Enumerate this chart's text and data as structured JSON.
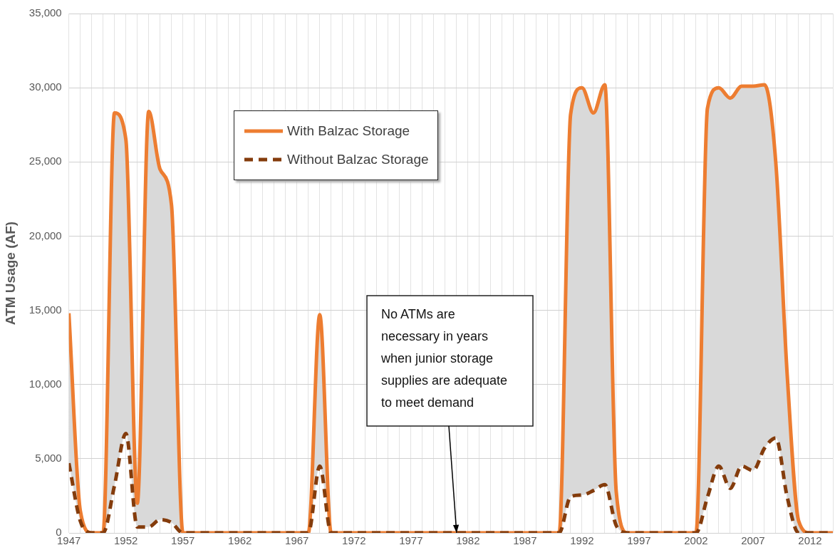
{
  "chart_data": {
    "type": "line",
    "ylabel": "ATM Usage (AF)",
    "x": [
      1947,
      1948,
      1949,
      1950,
      1951,
      1952,
      1953,
      1954,
      1955,
      1956,
      1957,
      1958,
      1959,
      1960,
      1961,
      1962,
      1963,
      1964,
      1965,
      1966,
      1967,
      1968,
      1969,
      1970,
      1971,
      1972,
      1973,
      1974,
      1975,
      1976,
      1977,
      1978,
      1979,
      1980,
      1981,
      1982,
      1983,
      1984,
      1985,
      1986,
      1987,
      1988,
      1989,
      1990,
      1991,
      1992,
      1993,
      1994,
      1995,
      1996,
      1997,
      1998,
      1999,
      2000,
      2001,
      2002,
      2003,
      2004,
      2005,
      2006,
      2007,
      2008,
      2009,
      2010,
      2011,
      2012,
      2013,
      2014
    ],
    "series": [
      {
        "name": "With Balzac Storage",
        "color": "#ed7d31",
        "line_style": "solid",
        "values": [
          14800,
          1500,
          0,
          0,
          28300,
          26500,
          2000,
          28400,
          24500,
          22100,
          0,
          0,
          0,
          0,
          0,
          0,
          0,
          0,
          0,
          0,
          0,
          0,
          14700,
          0,
          0,
          0,
          0,
          0,
          0,
          0,
          0,
          0,
          0,
          0,
          0,
          0,
          0,
          0,
          0,
          0,
          0,
          0,
          0,
          0,
          28200,
          30000,
          28300,
          30200,
          2800,
          0,
          0,
          0,
          0,
          0,
          0,
          0,
          28600,
          30000,
          29300,
          30100,
          30100,
          30200,
          24900,
          10600,
          800,
          0,
          0,
          0
        ],
        "lower": [
          4700,
          800,
          0,
          0,
          3200,
          6700,
          400,
          400,
          900,
          700,
          0,
          0,
          0,
          0,
          0,
          0,
          0,
          0,
          0,
          0,
          0,
          0,
          4500,
          0,
          0,
          0,
          0,
          0,
          0,
          0,
          0,
          0,
          0,
          0,
          0,
          0,
          0,
          0,
          0,
          0,
          0,
          0,
          0,
          0,
          2450,
          2550,
          2850,
          3250,
          500,
          0,
          0,
          0,
          0,
          0,
          0,
          0,
          2400,
          4500,
          3000,
          4500,
          4200,
          5700,
          6400,
          2400,
          0,
          0,
          0,
          0
        ],
        "upper": [
          14800,
          1500,
          0,
          0,
          28300,
          26500,
          2000,
          28400,
          24500,
          22100,
          0,
          0,
          0,
          0,
          0,
          0,
          0,
          0,
          0,
          0,
          0,
          0,
          14700,
          0,
          0,
          0,
          0,
          0,
          0,
          0,
          0,
          0,
          0,
          0,
          0,
          0,
          0,
          0,
          0,
          0,
          0,
          0,
          0,
          0,
          28200,
          30000,
          28300,
          30200,
          2800,
          0,
          0,
          0,
          0,
          0,
          0,
          0,
          28600,
          30000,
          29300,
          30100,
          30100,
          30200,
          24900,
          10600,
          800,
          0,
          0,
          0
        ]
      },
      {
        "name": "Without Balzac Storage",
        "color": "#843c0c",
        "line_style": "dashed",
        "values": [
          4700,
          800,
          0,
          0,
          3200,
          6700,
          400,
          400,
          900,
          700,
          0,
          0,
          0,
          0,
          0,
          0,
          0,
          0,
          0,
          0,
          0,
          0,
          4500,
          0,
          0,
          0,
          0,
          0,
          0,
          0,
          0,
          0,
          0,
          0,
          0,
          0,
          0,
          0,
          0,
          0,
          0,
          0,
          0,
          0,
          2450,
          2550,
          2850,
          3250,
          500,
          0,
          0,
          0,
          0,
          0,
          0,
          0,
          2400,
          4500,
          3000,
          4500,
          4200,
          5700,
          6400,
          2400,
          0,
          0,
          0,
          0
        ]
      }
    ],
    "xlim": [
      1947,
      2014
    ],
    "xticks": [
      1947,
      {
        "value": 1948,
        "label": null
      },
      {
        "value": 1949,
        "label": null
      },
      {
        "value": 1950,
        "label": null
      },
      {
        "value": 1951,
        "label": null
      },
      1952,
      {
        "value": 1953,
        "label": null
      },
      {
        "value": 1954,
        "label": null
      },
      {
        "value": 1955,
        "label": null
      },
      {
        "value": 1956,
        "label": null
      },
      1957,
      {
        "value": 1958,
        "label": null
      },
      {
        "value": 1959,
        "label": null
      },
      {
        "value": 1960,
        "label": null
      },
      {
        "value": 1961,
        "label": null
      },
      1962,
      {
        "value": 1963,
        "label": null
      },
      {
        "value": 1964,
        "label": null
      },
      {
        "value": 1965,
        "label": null
      },
      {
        "value": 1966,
        "label": null
      },
      1967,
      {
        "value": 1968,
        "label": null
      },
      {
        "value": 1969,
        "label": null
      },
      {
        "value": 1970,
        "label": null
      },
      {
        "value": 1971,
        "label": null
      },
      1972,
      {
        "value": 1973,
        "label": null
      },
      {
        "value": 1974,
        "label": null
      },
      {
        "value": 1975,
        "label": null
      },
      {
        "value": 1976,
        "label": null
      },
      1977,
      {
        "value": 1978,
        "label": null
      },
      {
        "value": 1979,
        "label": null
      },
      {
        "value": 1980,
        "label": null
      },
      {
        "value": 1981,
        "label": null
      },
      1982,
      {
        "value": 1983,
        "label": null
      },
      {
        "value": 1984,
        "label": null
      },
      {
        "value": 1985,
        "label": null
      },
      {
        "value": 1986,
        "label": null
      },
      1987,
      {
        "value": 1988,
        "label": null
      },
      {
        "value": 1989,
        "label": null
      },
      {
        "value": 1990,
        "label": null
      },
      {
        "value": 1991,
        "label": null
      },
      1992,
      {
        "value": 1993,
        "label": null
      },
      {
        "value": 1994,
        "label": null
      },
      {
        "value": 1995,
        "label": null
      },
      {
        "value": 1996,
        "label": null
      },
      1997,
      {
        "value": 1998,
        "label": null
      },
      {
        "value": 1999,
        "label": null
      },
      {
        "value": 2000,
        "label": null
      },
      {
        "value": 2001,
        "label": null
      },
      2002,
      {
        "value": 2003,
        "label": null
      },
      {
        "value": 2004,
        "label": null
      },
      {
        "value": 2005,
        "label": null
      },
      {
        "value": 2006,
        "label": null
      },
      2007,
      {
        "value": 2008,
        "label": null
      },
      {
        "value": 2009,
        "label": null
      },
      {
        "value": 2010,
        "label": null
      },
      {
        "value": 2011,
        "label": null
      },
      2012,
      {
        "value": 2013,
        "label": null
      },
      {
        "value": 2014,
        "label": null
      }
    ],
    "ylim": [
      0,
      35000
    ],
    "yticks": [
      0,
      {
        "value": 5000,
        "label": "5,000"
      },
      {
        "value": 10000,
        "label": "10,000"
      },
      {
        "value": 15000,
        "label": "15,000"
      },
      {
        "value": 20000,
        "label": "20,000"
      },
      {
        "value": 25000,
        "label": "25,000"
      },
      {
        "value": 30000,
        "label": "30,000"
      },
      {
        "value": 35000,
        "label": "35,000"
      }
    ],
    "grid": true,
    "legend": "top left",
    "marker": "none",
    "annotations": [
      {
        "text": "No ATMs are necessary in years when junior storage supplies are adequate to meet demand",
        "x": 1981,
        "y": 0
      }
    ]
  }
}
